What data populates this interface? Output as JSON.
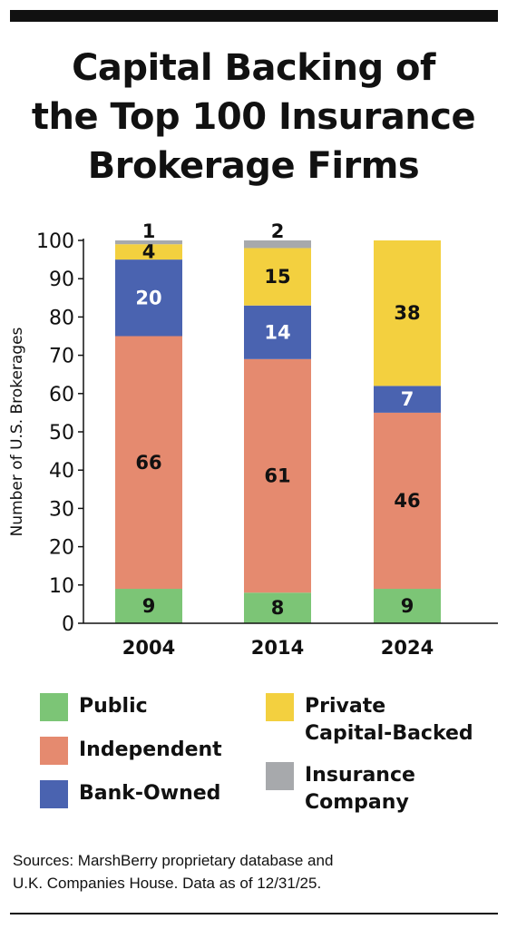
{
  "title_lines": [
    "Capital Backing of",
    "the Top 100 Insurance",
    "Brokerage Firms"
  ],
  "source_lines": [
    "Sources: MarshBerry proprietary database and",
    "U.K. Companies House. Data as of 12/31/25."
  ],
  "legend": [
    {
      "label": "Public",
      "color": "#7cc576"
    },
    {
      "label": "Independent",
      "color": "#e58a6f"
    },
    {
      "label": "Bank-Owned",
      "color": "#4a63b0"
    },
    {
      "label": "Private\nCapital-Backed",
      "color": "#f3d03f"
    },
    {
      "label": "Insurance\nCompany",
      "color": "#a7a9ac"
    }
  ],
  "chart_data": {
    "type": "bar",
    "stacked": true,
    "title": "Capital Backing of the Top 100 Insurance Brokerage Firms",
    "xlabel": "",
    "ylabel": "Number of U.S. Brokerages",
    "ylim": [
      0,
      100
    ],
    "yticks": [
      0,
      10,
      20,
      30,
      40,
      50,
      60,
      70,
      80,
      90,
      100
    ],
    "categories": [
      "2004",
      "2014",
      "2024"
    ],
    "grid": false,
    "legend_position": "bottom",
    "series": [
      {
        "name": "Public",
        "color": "#7cc576",
        "label_color": "#111111",
        "values": [
          9,
          8,
          9
        ]
      },
      {
        "name": "Independent",
        "color": "#e58a6f",
        "label_color": "#111111",
        "values": [
          66,
          61,
          46
        ]
      },
      {
        "name": "Bank-Owned",
        "color": "#4a63b0",
        "label_color": "#ffffff",
        "values": [
          20,
          14,
          7
        ]
      },
      {
        "name": "Private Capital-Backed",
        "color": "#f3d03f",
        "label_color": "#111111",
        "values": [
          4,
          15,
          38
        ]
      },
      {
        "name": "Insurance Company",
        "color": "#a7a9ac",
        "label_color": "#111111",
        "values": [
          1,
          2,
          0
        ]
      }
    ]
  }
}
